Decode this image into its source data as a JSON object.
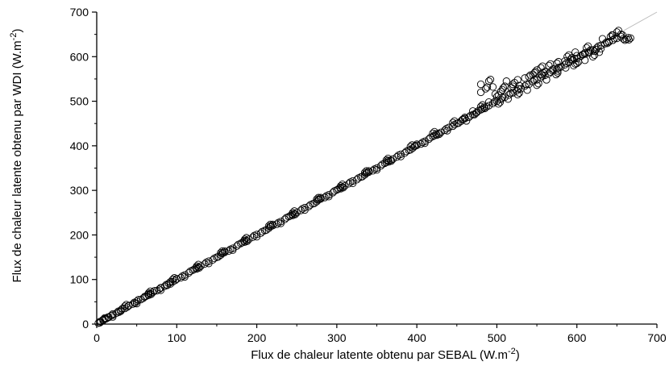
{
  "chart_data": {
    "type": "scatter",
    "title": "",
    "xlabel": "Flux de chaleur latente obtenu par SEBAL (W.m-2)",
    "xlabel_main": "Flux de chaleur latente obtenu par SEBAL (W.m",
    "xlabel_sup": "-2",
    "xlabel_close": ")",
    "ylabel": "Flux de chaleur latente obtenu par WDI (W.m-2)",
    "ylabel_main": "Flux de chaleur latente obtenu par WDI (W.m",
    "ylabel_sup": "-2",
    "ylabel_close": ")",
    "xlim": [
      0,
      700
    ],
    "ylim": [
      0,
      700
    ],
    "xticks": [
      0,
      100,
      200,
      300,
      400,
      500,
      600,
      700
    ],
    "yticks": [
      0,
      100,
      200,
      300,
      400,
      500,
      600,
      700
    ],
    "xtick_labels": [
      "0",
      "100",
      "200",
      "300",
      "400",
      "500",
      "600",
      "700"
    ],
    "ytick_labels": [
      "0",
      "100",
      "200",
      "300",
      "400",
      "500",
      "600",
      "700"
    ],
    "grid": false,
    "marker": "open-circle",
    "reference_line": {
      "from": [
        0,
        0
      ],
      "to": [
        700,
        700
      ],
      "color": "#bbbbbb"
    },
    "series": [
      {
        "values_description": "point cloud along the 1:1 line",
        "points": [
          [
            2,
            2
          ],
          [
            5,
            5
          ],
          [
            8,
            8
          ],
          [
            10,
            11
          ],
          [
            12,
            12
          ],
          [
            15,
            15
          ],
          [
            18,
            19
          ],
          [
            20,
            20
          ],
          [
            25,
            25
          ],
          [
            28,
            27
          ],
          [
            30,
            31
          ],
          [
            35,
            35
          ],
          [
            38,
            38
          ],
          [
            40,
            41
          ],
          [
            45,
            45
          ],
          [
            48,
            47
          ],
          [
            50,
            51
          ],
          [
            55,
            55
          ],
          [
            58,
            58
          ],
          [
            60,
            61
          ],
          [
            65,
            65
          ],
          [
            68,
            67
          ],
          [
            70,
            71
          ],
          [
            75,
            75
          ],
          [
            78,
            78
          ],
          [
            80,
            81
          ],
          [
            85,
            85
          ],
          [
            88,
            87
          ],
          [
            90,
            91
          ],
          [
            95,
            95
          ],
          [
            98,
            98
          ],
          [
            100,
            101
          ],
          [
            105,
            104
          ],
          [
            110,
            110
          ],
          [
            115,
            115
          ],
          [
            120,
            121
          ],
          [
            125,
            124
          ],
          [
            130,
            130
          ],
          [
            135,
            135
          ],
          [
            140,
            141
          ],
          [
            145,
            144
          ],
          [
            150,
            150
          ],
          [
            155,
            155
          ],
          [
            160,
            161
          ],
          [
            165,
            164
          ],
          [
            170,
            170
          ],
          [
            175,
            175
          ],
          [
            180,
            181
          ],
          [
            185,
            184
          ],
          [
            190,
            190
          ],
          [
            195,
            195
          ],
          [
            200,
            201
          ],
          [
            205,
            204
          ],
          [
            210,
            210
          ],
          [
            215,
            215
          ],
          [
            220,
            221
          ],
          [
            225,
            224
          ],
          [
            230,
            230
          ],
          [
            235,
            235
          ],
          [
            240,
            241
          ],
          [
            245,
            244
          ],
          [
            250,
            250
          ],
          [
            255,
            255
          ],
          [
            260,
            261
          ],
          [
            265,
            264
          ],
          [
            270,
            270
          ],
          [
            275,
            275
          ],
          [
            280,
            281
          ],
          [
            285,
            284
          ],
          [
            290,
            290
          ],
          [
            295,
            295
          ],
          [
            300,
            301
          ],
          [
            305,
            304
          ],
          [
            310,
            310
          ],
          [
            315,
            315
          ],
          [
            320,
            321
          ],
          [
            325,
            324
          ],
          [
            330,
            330
          ],
          [
            335,
            335
          ],
          [
            340,
            341
          ],
          [
            345,
            344
          ],
          [
            350,
            350
          ],
          [
            355,
            355
          ],
          [
            360,
            361
          ],
          [
            365,
            364
          ],
          [
            370,
            370
          ],
          [
            375,
            375
          ],
          [
            380,
            381
          ],
          [
            385,
            384
          ],
          [
            390,
            390
          ],
          [
            395,
            395
          ],
          [
            400,
            401
          ],
          [
            405,
            404
          ],
          [
            410,
            410
          ],
          [
            415,
            415
          ],
          [
            420,
            421
          ],
          [
            425,
            424
          ],
          [
            430,
            430
          ],
          [
            435,
            435
          ],
          [
            440,
            441
          ],
          [
            445,
            444
          ],
          [
            450,
            450
          ],
          [
            455,
            455
          ],
          [
            460,
            461
          ],
          [
            465,
            464
          ],
          [
            470,
            470
          ],
          [
            475,
            475
          ],
          [
            480,
            481
          ],
          [
            485,
            484
          ],
          [
            490,
            490
          ],
          [
            495,
            495
          ],
          [
            500,
            500
          ],
          [
            505,
            504
          ],
          [
            510,
            509
          ],
          [
            515,
            514
          ],
          [
            520,
            519
          ],
          [
            525,
            524
          ],
          [
            530,
            528
          ],
          [
            535,
            534
          ],
          [
            540,
            538
          ],
          [
            545,
            544
          ],
          [
            550,
            548
          ],
          [
            555,
            553
          ],
          [
            560,
            558
          ],
          [
            565,
            562
          ],
          [
            570,
            568
          ],
          [
            575,
            572
          ],
          [
            580,
            577
          ],
          [
            585,
            582
          ],
          [
            590,
            587
          ],
          [
            595,
            592
          ],
          [
            600,
            596
          ],
          [
            605,
            601
          ],
          [
            610,
            606
          ],
          [
            615,
            611
          ],
          [
            620,
            615
          ],
          [
            625,
            620
          ],
          [
            630,
            625
          ],
          [
            635,
            629
          ],
          [
            640,
            633
          ],
          [
            645,
            637
          ],
          [
            650,
            641
          ],
          [
            655,
            645
          ],
          [
            660,
            637
          ],
          [
            665,
            638
          ],
          [
            30,
            29
          ],
          [
            62,
            63
          ],
          [
            92,
            90
          ],
          [
            122,
            123
          ],
          [
            152,
            151
          ],
          [
            182,
            183
          ],
          [
            212,
            211
          ],
          [
            242,
            243
          ],
          [
            272,
            271
          ],
          [
            302,
            303
          ],
          [
            332,
            331
          ],
          [
            362,
            363
          ],
          [
            392,
            391
          ],
          [
            422,
            423
          ],
          [
            452,
            451
          ],
          [
            482,
            483
          ],
          [
            128,
            126
          ],
          [
            158,
            160
          ],
          [
            188,
            186
          ],
          [
            218,
            220
          ],
          [
            248,
            246
          ],
          [
            278,
            280
          ],
          [
            308,
            306
          ],
          [
            338,
            340
          ],
          [
            368,
            366
          ],
          [
            398,
            400
          ],
          [
            428,
            426
          ],
          [
            458,
            460
          ],
          [
            470,
            478
          ],
          [
            480,
            488
          ],
          [
            490,
            498
          ],
          [
            500,
            510
          ],
          [
            480,
            520
          ],
          [
            486,
            528
          ],
          [
            480,
            538
          ],
          [
            490,
            545
          ],
          [
            495,
            532
          ],
          [
            505,
            522
          ],
          [
            512,
            545
          ],
          [
            520,
            538
          ],
          [
            528,
            535
          ],
          [
            518,
            530
          ],
          [
            535,
            552
          ],
          [
            545,
            560
          ],
          [
            550,
            570
          ],
          [
            555,
            575
          ],
          [
            560,
            566
          ],
          [
            565,
            580
          ],
          [
            570,
            572
          ],
          [
            575,
            585
          ],
          [
            585,
            590
          ],
          [
            592,
            594
          ],
          [
            600,
            602
          ],
          [
            608,
            605
          ],
          [
            615,
            608
          ],
          [
            622,
            612
          ],
          [
            630,
            618
          ],
          [
            638,
            630
          ],
          [
            645,
            648
          ],
          [
            650,
            655
          ],
          [
            655,
            650
          ],
          [
            540,
            555
          ],
          [
            548,
            566
          ],
          [
            556,
            560
          ],
          [
            526,
            548
          ],
          [
            508,
            530
          ],
          [
            498,
            516
          ],
          [
            472,
            470
          ],
          [
            462,
            456
          ],
          [
            445,
            452
          ],
          [
            438,
            434
          ],
          [
            420,
            428
          ],
          [
            410,
            406
          ],
          [
            392,
            398
          ],
          [
            380,
            376
          ],
          [
            362,
            368
          ],
          [
            350,
            346
          ],
          [
            335,
            340
          ],
          [
            320,
            316
          ],
          [
            305,
            310
          ],
          [
            290,
            286
          ],
          [
            275,
            280
          ],
          [
            260,
            256
          ],
          [
            245,
            250
          ],
          [
            230,
            226
          ],
          [
            215,
            220
          ],
          [
            200,
            196
          ],
          [
            185,
            190
          ],
          [
            170,
            166
          ],
          [
            155,
            160
          ],
          [
            140,
            136
          ],
          [
            125,
            130
          ],
          [
            110,
            106
          ],
          [
            95,
            100
          ],
          [
            80,
            76
          ],
          [
            65,
            70
          ],
          [
            50,
            46
          ],
          [
            35,
            40
          ],
          [
            20,
            16
          ],
          [
            8,
            10
          ],
          [
            4,
            3
          ],
          [
            600,
            585
          ],
          [
            610,
            592
          ],
          [
            620,
            600
          ],
          [
            628,
            610
          ],
          [
            596,
            580
          ],
          [
            586,
            575
          ],
          [
            574,
            560
          ],
          [
            562,
            548
          ],
          [
            550,
            536
          ],
          [
            538,
            525
          ],
          [
            526,
            515
          ],
          [
            514,
            505
          ],
          [
            502,
            494
          ],
          [
            576,
            568
          ],
          [
            588,
            600
          ],
          [
            598,
            610
          ],
          [
            612,
            620
          ],
          [
            632,
            640
          ],
          [
            642,
            645
          ],
          [
            658,
            640
          ],
          [
            662,
            639
          ]
        ]
      }
    ]
  }
}
